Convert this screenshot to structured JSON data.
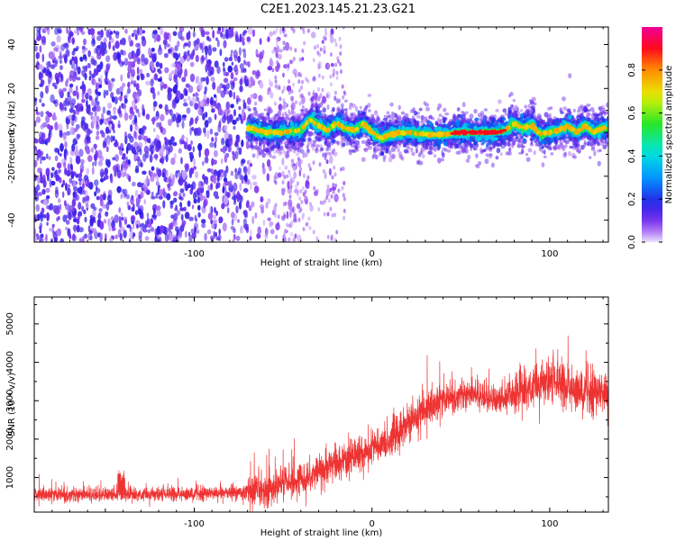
{
  "title": "C2E1.2023.145.21.23.G21",
  "chart_data": [
    {
      "type": "heatmap",
      "xlabel": "Height of straight line (km)",
      "ylabel": "Frequency (Hz)",
      "xlim": [
        -190,
        133
      ],
      "ylim": [
        -50,
        48
      ],
      "xticks": [
        -100,
        0,
        100
      ],
      "xtick_labels": [
        "-100",
        "0",
        "100"
      ],
      "yticks": [
        -40,
        -20,
        0,
        20,
        40
      ],
      "ytick_labels": [
        "-40",
        "-20",
        "0",
        "20",
        "40"
      ],
      "grid": false,
      "colorbar": {
        "label": "Normalized spectral amplitude",
        "range": [
          0,
          1
        ],
        "ticks": [
          0,
          0.2,
          0.4,
          0.6,
          0.8
        ],
        "tick_labels": [
          "0.0",
          "0.2",
          "0.4",
          "0.6",
          "0.8"
        ]
      },
      "noise_region_x": [
        -190,
        -20
      ],
      "signal_start_x": -70,
      "signal_ridge": {
        "x": [
          -70,
          -60,
          -50,
          -40,
          -35,
          -30,
          -25,
          -20,
          -15,
          -10,
          -5,
          0,
          5,
          10,
          20,
          30,
          40,
          50,
          60,
          70,
          75,
          80,
          85,
          90,
          95,
          100,
          105,
          110,
          115,
          120,
          125,
          130
        ],
        "y": [
          2,
          0,
          0,
          1,
          6,
          3,
          1,
          4,
          2,
          1,
          4,
          0,
          -3,
          -1,
          0,
          -1,
          -1,
          0,
          0,
          0,
          1,
          4,
          2,
          3,
          -1,
          0,
          1,
          3,
          0,
          3,
          0,
          2
        ]
      }
    },
    {
      "type": "line",
      "xlabel": "Height of straight line (km)",
      "ylabel": "SNR (10 * v/v)",
      "xlim": [
        -190,
        133
      ],
      "ylim": [
        100,
        5700
      ],
      "xticks": [
        -100,
        0,
        100
      ],
      "xtick_labels": [
        "-100",
        "0",
        "100"
      ],
      "yticks": [
        1000,
        2000,
        3000,
        4000,
        5000
      ],
      "ytick_labels": [
        "1000",
        "2000",
        "3000",
        "4000",
        "5000"
      ],
      "grid": false,
      "series": [
        {
          "color": "#ee3333",
          "x": [
            -190,
            -160,
            -140,
            -130,
            -100,
            -80,
            -60,
            -50,
            -40,
            -30,
            -20,
            -10,
            0,
            10,
            20,
            30,
            40,
            50,
            60,
            70,
            80,
            90,
            100,
            110,
            120,
            133
          ],
          "y": [
            550,
            550,
            560,
            550,
            580,
            610,
            620,
            850,
            950,
            1150,
            1400,
            1550,
            1750,
            2000,
            2400,
            2750,
            3000,
            3150,
            3150,
            3000,
            3150,
            3350,
            3500,
            3350,
            3250,
            3200
          ]
        }
      ]
    }
  ]
}
